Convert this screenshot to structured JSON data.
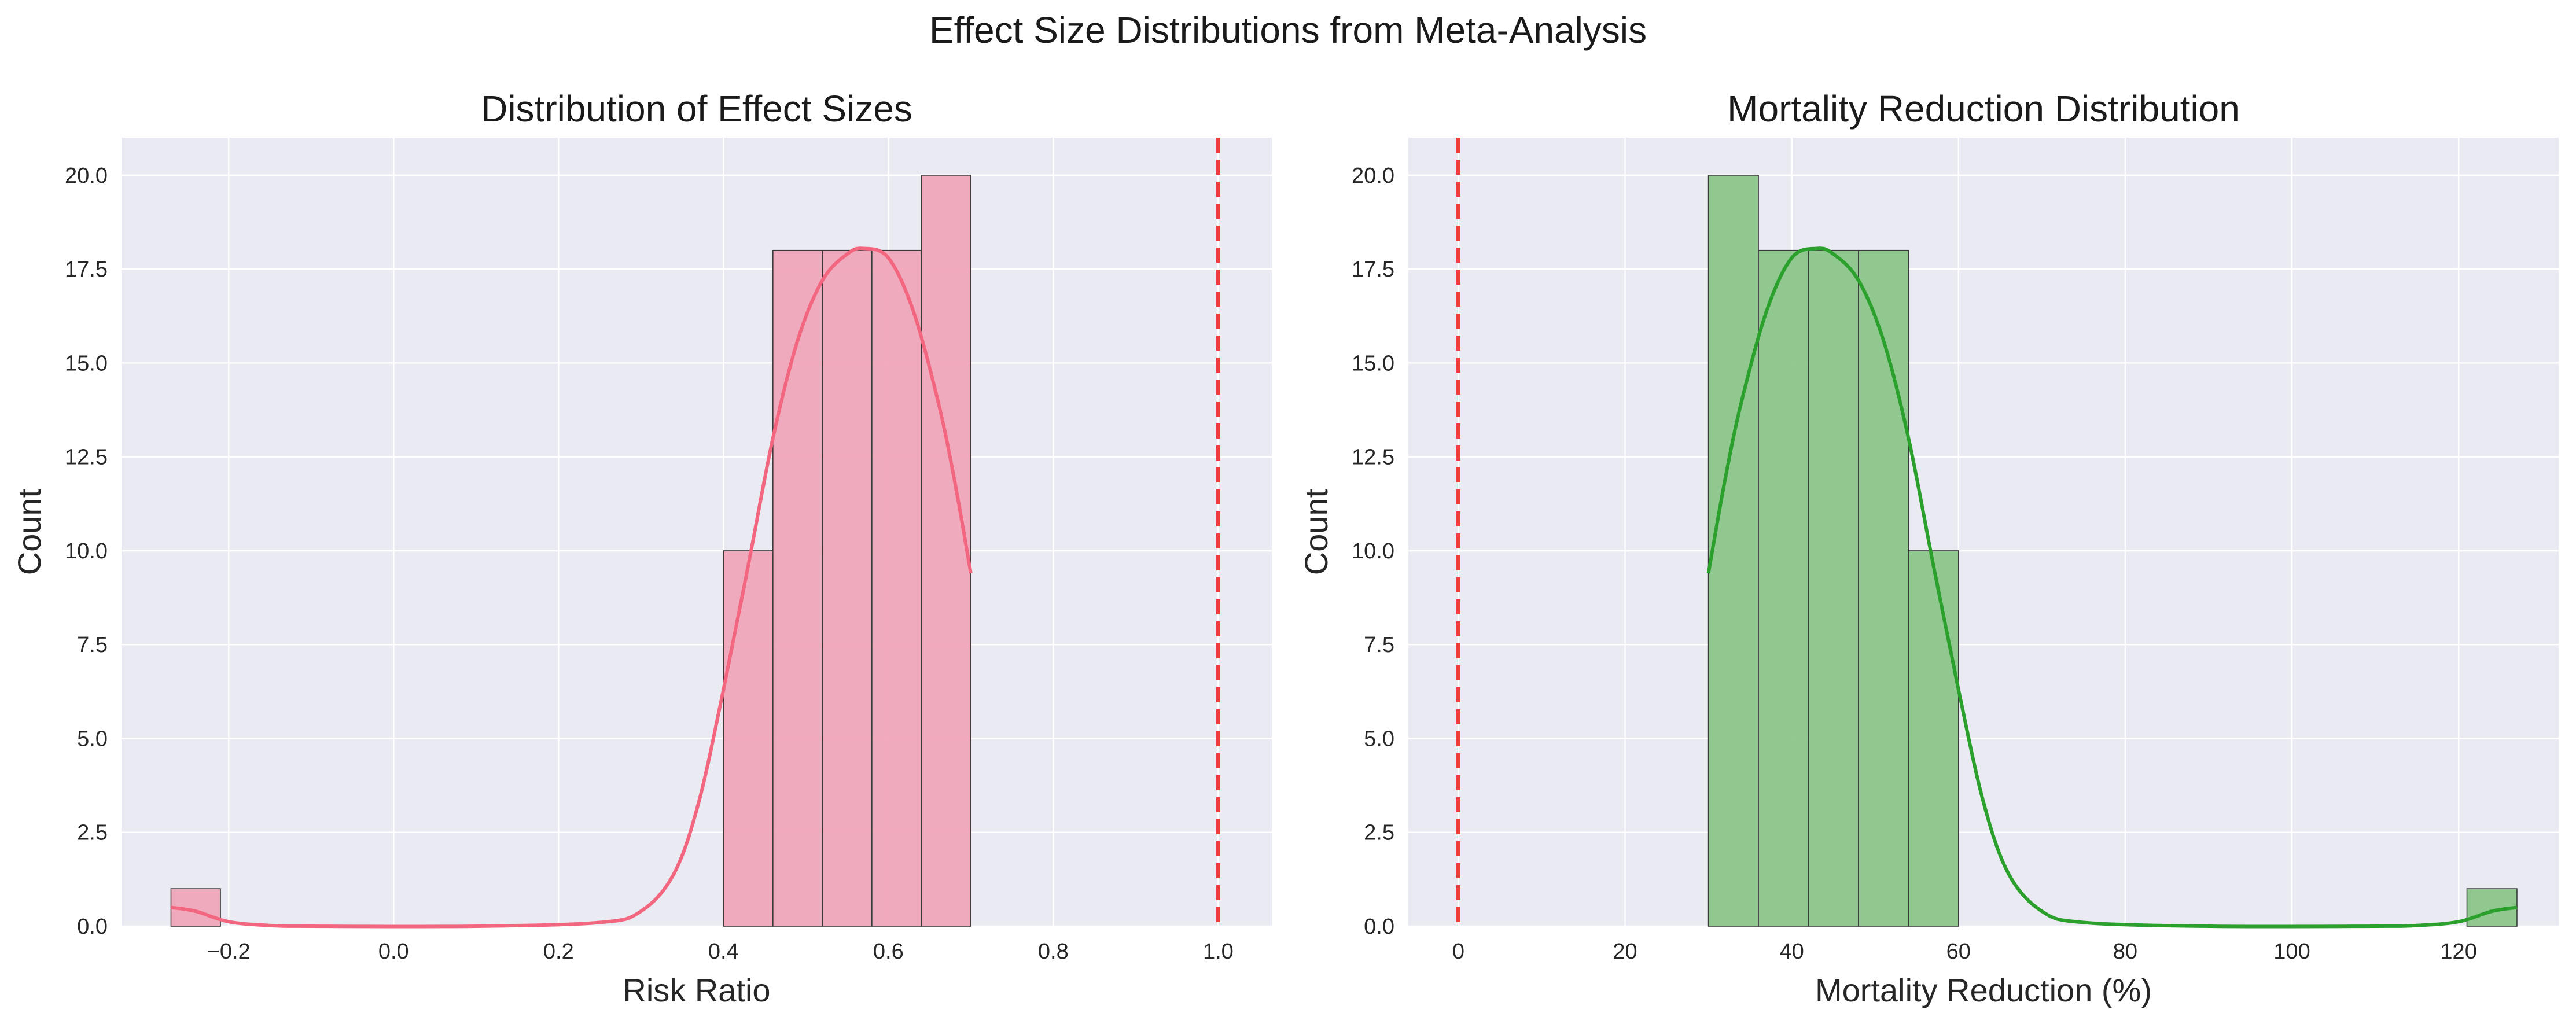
{
  "figure": {
    "suptitle": "Effect Size Distributions from Meta-Analysis"
  },
  "chart_data": [
    {
      "type": "bar",
      "subtype": "histogram-with-kde",
      "title": "Distribution of Effect Sizes",
      "xlabel": "Risk Ratio",
      "ylabel": "Count",
      "xlim": [
        -0.33,
        1.065
      ],
      "ylim": [
        0,
        21
      ],
      "xticks": [
        -0.2,
        0.0,
        0.2,
        0.4,
        0.6,
        0.8,
        1.0
      ],
      "xtick_labels": [
        "−0.2",
        "0.0",
        "0.2",
        "0.4",
        "0.6",
        "0.8",
        "1.0"
      ],
      "yticks": [
        0,
        2.5,
        5,
        7.5,
        10,
        12.5,
        15,
        17.5,
        20
      ],
      "ytick_labels": [
        "0.0",
        "2.5",
        "5.0",
        "7.5",
        "10.0",
        "12.5",
        "15.0",
        "17.5",
        "20.0"
      ],
      "bins": [
        {
          "x0": -0.27,
          "x1": -0.21,
          "count": 1
        },
        {
          "x0": 0.4,
          "x1": 0.46,
          "count": 10
        },
        {
          "x0": 0.46,
          "x1": 0.52,
          "count": 18
        },
        {
          "x0": 0.52,
          "x1": 0.58,
          "count": 18
        },
        {
          "x0": 0.58,
          "x1": 0.64,
          "count": 18
        },
        {
          "x0": 0.64,
          "x1": 0.7,
          "count": 20
        }
      ],
      "kde": [
        {
          "x": -0.27,
          "y": 0.5
        },
        {
          "x": -0.24,
          "y": 0.4
        },
        {
          "x": -0.2,
          "y": 0.12
        },
        {
          "x": -0.15,
          "y": 0.02
        },
        {
          "x": -0.1,
          "y": 0.0
        },
        {
          "x": 0.1,
          "y": 0.0
        },
        {
          "x": 0.25,
          "y": 0.1
        },
        {
          "x": 0.3,
          "y": 0.4
        },
        {
          "x": 0.34,
          "y": 1.4
        },
        {
          "x": 0.37,
          "y": 3.3
        },
        {
          "x": 0.4,
          "y": 6.3
        },
        {
          "x": 0.43,
          "y": 9.6
        },
        {
          "x": 0.46,
          "y": 13.0
        },
        {
          "x": 0.49,
          "y": 15.6
        },
        {
          "x": 0.52,
          "y": 17.2
        },
        {
          "x": 0.55,
          "y": 17.9
        },
        {
          "x": 0.57,
          "y": 18.05
        },
        {
          "x": 0.6,
          "y": 17.8
        },
        {
          "x": 0.63,
          "y": 16.4
        },
        {
          "x": 0.66,
          "y": 14.0
        },
        {
          "x": 0.68,
          "y": 11.9
        },
        {
          "x": 0.7,
          "y": 9.4
        }
      ],
      "reference_line": {
        "x": 1.0,
        "style": "dashed"
      },
      "bar_color": "#f0a7b9",
      "bar_edge": "#3a3a3a",
      "kde_color": "#f2677f",
      "ref_color": "#ee3b3b",
      "grid": true
    },
    {
      "type": "bar",
      "subtype": "histogram-with-kde",
      "title": "Mortality Reduction Distribution",
      "xlabel": "Mortality Reduction (%)",
      "ylabel": "Count",
      "xlim": [
        -6.0,
        132.0
      ],
      "ylim": [
        0,
        21
      ],
      "xticks": [
        0,
        20,
        40,
        60,
        80,
        100,
        120
      ],
      "xtick_labels": [
        "0",
        "20",
        "40",
        "60",
        "80",
        "100",
        "120"
      ],
      "yticks": [
        0,
        2.5,
        5,
        7.5,
        10,
        12.5,
        15,
        17.5,
        20
      ],
      "ytick_labels": [
        "0.0",
        "2.5",
        "5.0",
        "7.5",
        "10.0",
        "12.5",
        "15.0",
        "17.5",
        "20.0"
      ],
      "bins": [
        {
          "x0": 30,
          "x1": 36,
          "count": 20
        },
        {
          "x0": 36,
          "x1": 42,
          "count": 18
        },
        {
          "x0": 42,
          "x1": 48,
          "count": 18
        },
        {
          "x0": 48,
          "x1": 54,
          "count": 18
        },
        {
          "x0": 54,
          "x1": 60,
          "count": 10
        },
        {
          "x0": 121,
          "x1": 127,
          "count": 1
        }
      ],
      "kde": [
        {
          "x": 30,
          "y": 9.4
        },
        {
          "x": 32,
          "y": 11.9
        },
        {
          "x": 34,
          "y": 14.0
        },
        {
          "x": 37,
          "y": 16.4
        },
        {
          "x": 40,
          "y": 17.8
        },
        {
          "x": 43,
          "y": 18.05
        },
        {
          "x": 45,
          "y": 17.9
        },
        {
          "x": 48,
          "y": 17.2
        },
        {
          "x": 51,
          "y": 15.6
        },
        {
          "x": 54,
          "y": 13.0
        },
        {
          "x": 57,
          "y": 9.6
        },
        {
          "x": 60,
          "y": 6.3
        },
        {
          "x": 63,
          "y": 3.3
        },
        {
          "x": 66,
          "y": 1.4
        },
        {
          "x": 70,
          "y": 0.4
        },
        {
          "x": 75,
          "y": 0.1
        },
        {
          "x": 90,
          "y": 0.0
        },
        {
          "x": 110,
          "y": 0.0
        },
        {
          "x": 115,
          "y": 0.02
        },
        {
          "x": 120,
          "y": 0.12
        },
        {
          "x": 124,
          "y": 0.4
        },
        {
          "x": 127,
          "y": 0.5
        }
      ],
      "reference_line": {
        "x": 0,
        "style": "dashed"
      },
      "bar_color": "#8bc68a",
      "bar_edge": "#3a3a3a",
      "kde_color": "#2ca02c",
      "ref_color": "#ee3b3b",
      "grid": true
    }
  ]
}
